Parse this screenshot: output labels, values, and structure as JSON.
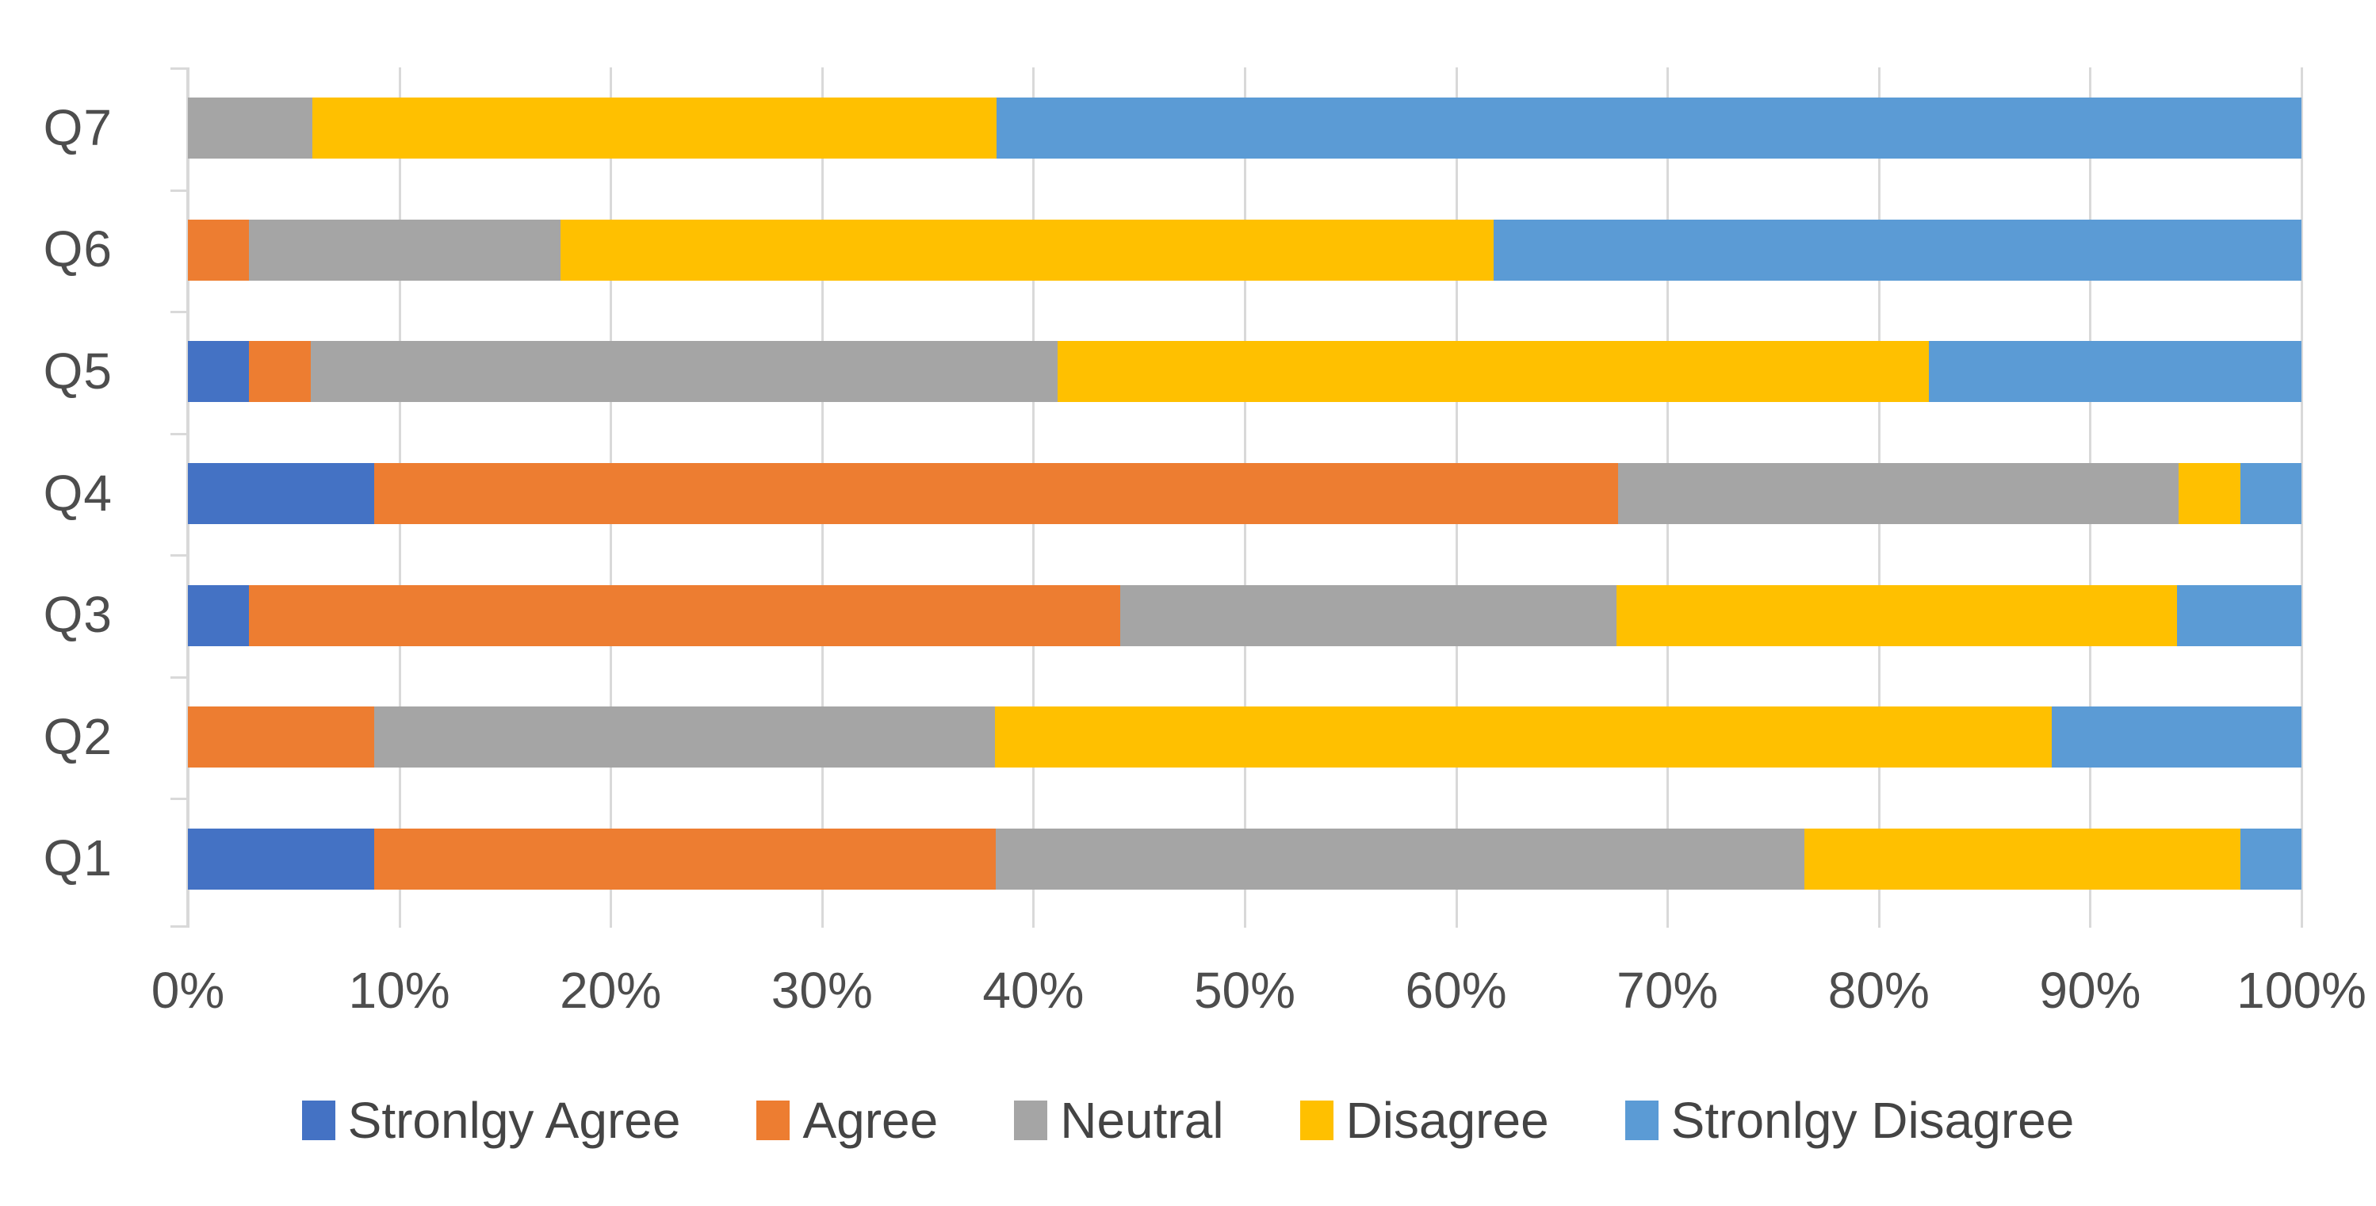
{
  "chart_data": {
    "type": "bar",
    "variant": "100%-stacked-horizontal",
    "title": "",
    "xlabel": "",
    "ylabel": "",
    "grid": true,
    "categories": [
      "Q1",
      "Q2",
      "Q3",
      "Q4",
      "Q5",
      "Q6",
      "Q7"
    ],
    "category_display_order_top_to_bottom": [
      "Q7",
      "Q6",
      "Q5",
      "Q4",
      "Q3",
      "Q2",
      "Q1"
    ],
    "series": [
      {
        "name": "Stronlgy Agree",
        "color": "#4472C4",
        "values": [
          8.8,
          0.0,
          2.9,
          8.8,
          2.9,
          0.0,
          0.0
        ]
      },
      {
        "name": "Agree",
        "color": "#ED7D31",
        "values": [
          29.4,
          8.8,
          41.2,
          58.8,
          2.9,
          2.9,
          0.0
        ]
      },
      {
        "name": "Neutral",
        "color": "#A5A5A5",
        "values": [
          38.2,
          29.4,
          23.5,
          26.5,
          35.3,
          14.7,
          5.9
        ]
      },
      {
        "name": "Disagree",
        "color": "#FFC000",
        "values": [
          20.6,
          50.0,
          26.5,
          2.9,
          41.2,
          44.1,
          32.4
        ]
      },
      {
        "name": "Stronlgy Disagree",
        "color": "#5B9BD5",
        "values": [
          2.9,
          11.8,
          5.9,
          2.9,
          17.6,
          38.2,
          61.8
        ]
      }
    ],
    "x_axis": {
      "range": [
        0,
        100
      ],
      "tick_step": 10,
      "tick_labels": [
        "0%",
        "10%",
        "20%",
        "30%",
        "40%",
        "50%",
        "60%",
        "70%",
        "80%",
        "90%",
        "100%"
      ]
    },
    "legend": {
      "position": "bottom",
      "entries": [
        "Stronlgy Agree",
        "Agree",
        "Neutral",
        "Disagree",
        "Stronlgy Disagree"
      ]
    }
  },
  "colors": {
    "background": "#FFFFFF",
    "gridline": "#D9D9D9",
    "axis_line": "#D9D9D9",
    "axis_text": "#4D4D4D",
    "legend_text": "#444444"
  }
}
